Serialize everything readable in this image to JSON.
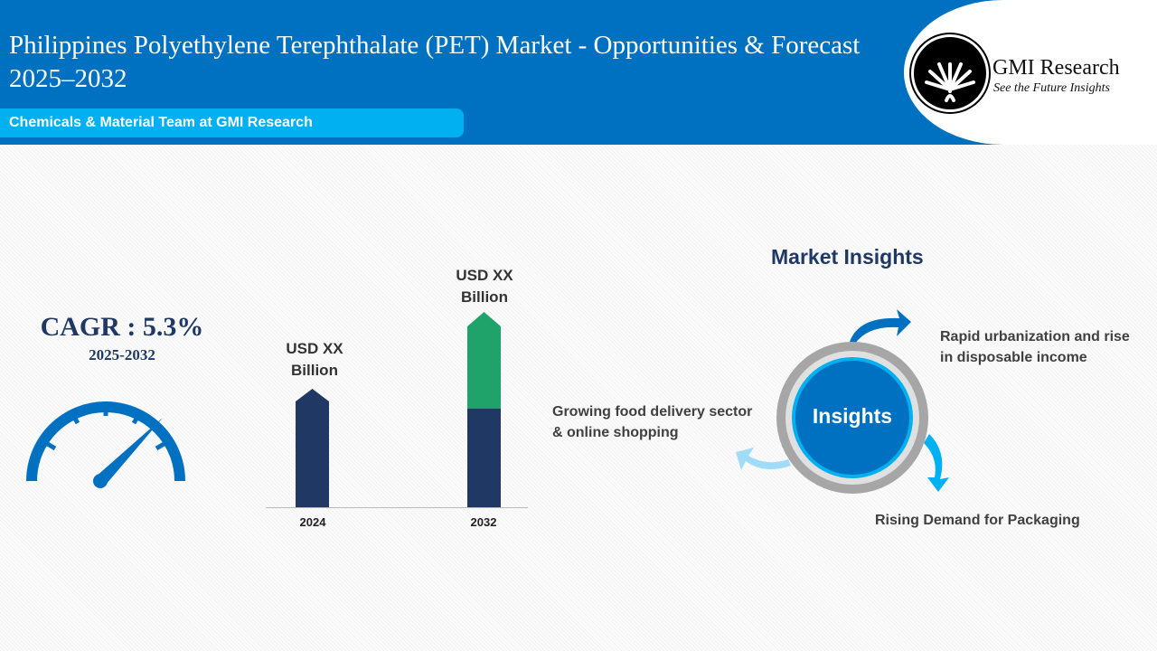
{
  "header": {
    "title": "Philippines Polyethylene Terephthalate (PET) Market - Opportunities & Forecast 2025–2032",
    "team": "Chemicals & Material Team at GMI Research"
  },
  "logo": {
    "name": "GMI Research",
    "tagline": "See the Future Insights"
  },
  "cagr": {
    "label": "CAGR : 5.3%",
    "period": "2025-2032"
  },
  "chart_data": {
    "type": "bar",
    "categories": [
      "2024",
      "2032"
    ],
    "data_labels": [
      "USD XX Billion",
      "USD XX Billion"
    ],
    "colors": {
      "base": "#1f3864",
      "growth": "#1fa36a"
    }
  },
  "insights": {
    "title": "Market Insights",
    "center": "Insights",
    "items": [
      "Rapid urbanization and rise in disposable income",
      "Growing food delivery sector & online shopping",
      "Rising Demand for Packaging"
    ]
  },
  "colors": {
    "primary": "#0070c0",
    "accent": "#00b0f0"
  }
}
